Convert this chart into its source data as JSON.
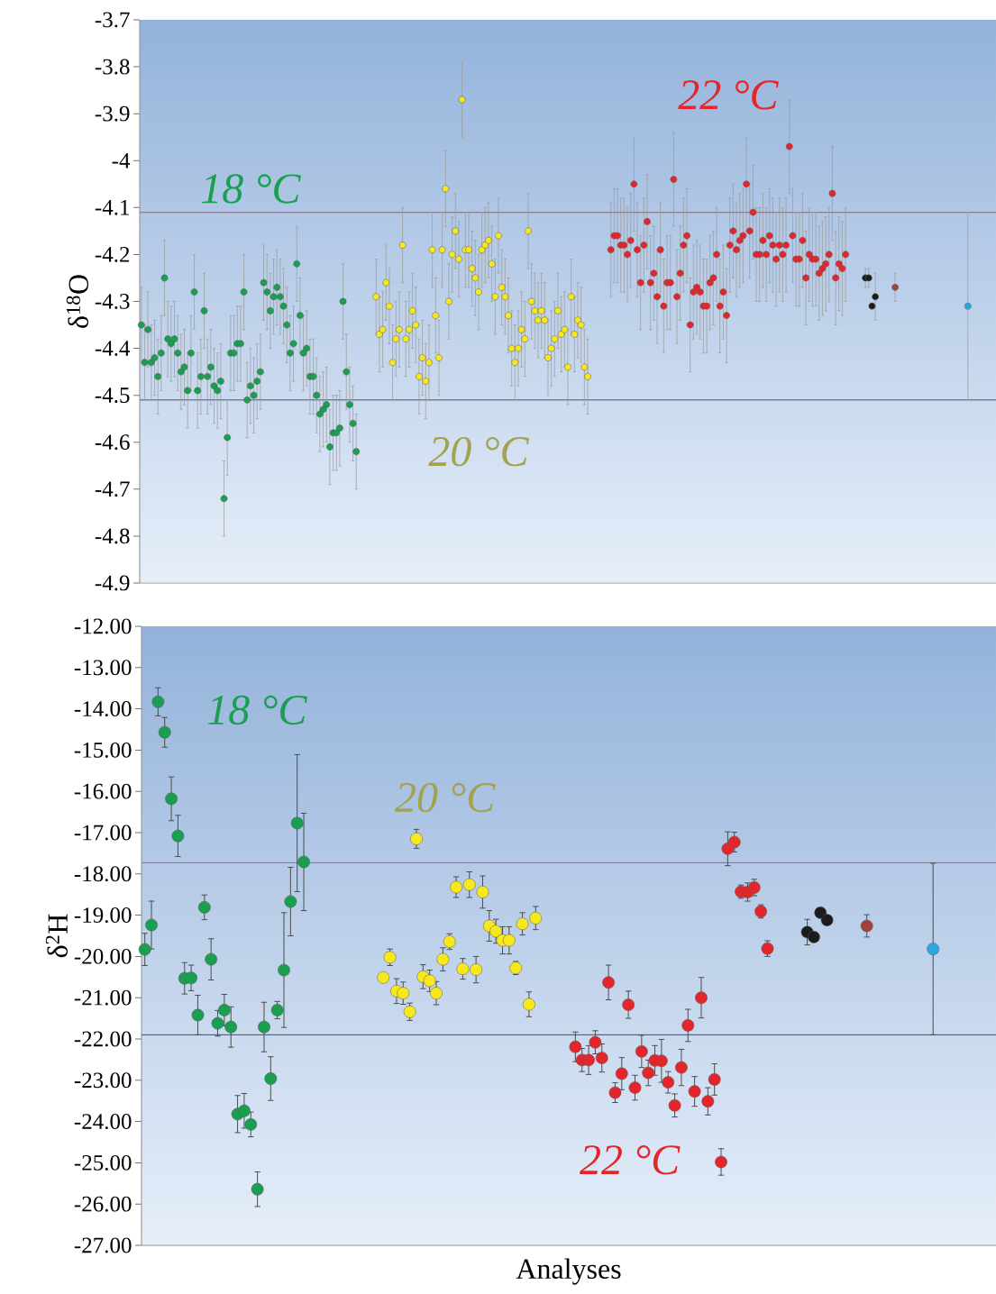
{
  "chart_data": [
    {
      "type": "scatter",
      "ylabel": "δ$^{18}$O",
      "tick_labels": "y",
      "ylim": [
        -4.9,
        -3.7
      ],
      "yticks": [
        -3.7,
        -3.8,
        -3.9,
        -4,
        -4.1,
        -4.2,
        -4.3,
        -4.4,
        -4.5,
        -4.6,
        -4.7,
        -4.8,
        -4.9
      ],
      "annotations": [
        "18 °C",
        "20 °C",
        "22 °C"
      ],
      "ref_lines": [
        {
          "axis": "y",
          "value": -4.11,
          "color": "#e05a5a"
        },
        {
          "axis": "y",
          "value": -4.51,
          "color": "#56627e"
        }
      ],
      "categories": [
        null,
        null,
        null,
        null,
        null,
        null,
        null,
        null,
        null,
        null,
        null,
        null,
        null,
        null,
        null,
        null,
        null,
        null,
        null,
        null,
        null,
        null,
        null,
        null,
        null,
        null,
        null,
        null,
        null,
        null,
        null,
        null,
        null,
        null,
        null,
        null,
        null,
        null,
        null,
        null,
        null,
        null,
        null,
        null,
        null,
        null,
        null,
        null,
        null,
        null,
        null,
        null,
        null,
        null,
        null,
        null,
        null,
        null,
        null,
        null,
        null,
        null,
        null,
        null,
        null,
        null,
        null,
        null,
        null,
        null,
        null,
        null,
        null,
        null,
        null,
        null,
        null,
        null,
        null,
        null,
        null,
        null,
        null,
        null,
        null,
        null,
        null,
        null,
        null,
        null,
        null,
        null,
        null,
        null,
        null,
        null,
        null,
        null,
        null,
        null,
        null,
        null,
        null,
        null,
        null,
        null,
        null,
        null,
        null,
        null,
        null,
        null,
        null,
        null,
        null,
        null,
        null,
        null,
        null,
        null,
        null,
        null,
        null,
        null,
        null,
        null,
        null,
        null,
        null,
        null,
        null,
        null,
        null,
        null,
        null,
        null,
        null,
        null,
        null,
        null,
        null,
        null,
        null,
        null,
        null,
        null,
        null,
        null,
        null,
        null,
        null,
        null,
        null,
        null,
        null,
        null,
        null,
        null,
        null,
        null,
        null,
        null,
        null,
        null,
        null,
        null,
        null,
        null,
        null,
        null,
        null,
        null,
        null,
        null,
        null,
        null,
        null,
        null,
        null,
        null,
        null,
        null,
        null,
        null,
        null,
        null,
        null,
        null,
        null,
        null,
        null,
        null,
        null,
        null,
        null,
        null,
        null,
        null,
        null,
        null,
        null,
        null,
        null,
        null,
        null,
        null,
        null,
        null,
        null,
        null,
        null,
        null,
        null,
        null,
        null,
        null,
        null,
        null,
        null,
        null,
        null,
        null,
        null,
        null,
        null,
        null,
        null,
        null,
        null,
        null,
        null,
        null,
        null,
        null,
        null,
        null,
        null,
        null,
        null,
        null,
        null,
        null,
        null,
        null,
        null,
        null,
        null,
        null,
        null,
        null,
        null,
        null,
        null,
        null,
        null,
        null,
        null,
        null,
        null
      ],
      "values": [
        -4.35,
        -4.43,
        -4.36,
        -4.43,
        -4.42,
        -4.46,
        -4.41,
        -4.25,
        -4.38,
        -4.39,
        -4.38,
        -4.41,
        -4.45,
        -4.44,
        -4.49,
        -4.41,
        -4.28,
        -4.49,
        -4.46,
        -4.32,
        -4.46,
        -4.44,
        -4.48,
        -4.49,
        -4.47,
        -4.72,
        -4.59,
        -4.41,
        -4.41,
        -4.39,
        -4.39,
        -4.28,
        -4.51,
        -4.48,
        -4.5,
        -4.47,
        -4.45,
        -4.26,
        -4.28,
        -4.32,
        -4.29,
        -4.27,
        -4.29,
        -4.31,
        -4.35,
        -4.41,
        -4.39,
        -4.22,
        -4.33,
        -4.41,
        -4.4,
        -4.46,
        -4.46,
        -4.5,
        -4.54,
        -4.53,
        -4.52,
        -4.61,
        -4.58,
        -4.58,
        -4.57,
        -4.3,
        -4.45,
        -4.52,
        -4.56,
        -4.62,
        null,
        null,
        null,
        null,
        null,
        -4.29,
        -4.37,
        -4.36,
        -4.26,
        -4.31,
        -4.43,
        -4.38,
        -4.36,
        -4.18,
        -4.38,
        -4.36,
        -4.32,
        -4.35,
        -4.46,
        -4.42,
        -4.47,
        -4.43,
        -4.19,
        -4.33,
        -4.42,
        -4.19,
        -4.06,
        -4.3,
        -4.2,
        -4.15,
        -4.21,
        -3.87,
        -4.19,
        -4.19,
        -4.23,
        -4.25,
        -4.28,
        -4.19,
        -4.18,
        -4.17,
        -4.22,
        -4.29,
        -4.16,
        -4.27,
        -4.29,
        -4.33,
        -4.4,
        -4.43,
        -4.4,
        -4.36,
        -4.38,
        -4.15,
        -4.3,
        -4.32,
        -4.34,
        -4.32,
        -4.34,
        -4.42,
        -4.4,
        -4.38,
        -4.32,
        -4.37,
        -4.36,
        -4.44,
        -4.29,
        -4.37,
        -4.34,
        -4.35,
        -4.44,
        -4.46,
        null,
        null,
        null,
        null,
        null,
        null,
        -4.19,
        -4.16,
        -4.16,
        -4.18,
        -4.18,
        -4.2,
        -4.17,
        -4.05,
        -4.19,
        -4.26,
        -4.18,
        -4.13,
        -4.26,
        -4.24,
        -4.29,
        -4.19,
        -4.31,
        -4.26,
        -4.26,
        -4.04,
        -4.29,
        -4.24,
        -4.18,
        -4.16,
        -4.35,
        -4.28,
        -4.27,
        -4.28,
        -4.31,
        -4.31,
        -4.26,
        -4.25,
        -4.2,
        -4.31,
        -4.28,
        -4.33,
        -4.18,
        -4.15,
        -4.19,
        -4.17,
        -4.16,
        -4.05,
        -4.15,
        -4.11,
        -4.2,
        -4.2,
        -4.17,
        -4.2,
        -4.16,
        -4.18,
        -4.21,
        -4.18,
        -4.2,
        -4.18,
        -3.97,
        -4.16,
        -4.21,
        -4.21,
        -4.17,
        -4.25,
        -4.2,
        -4.21,
        -4.21,
        -4.24,
        -4.23,
        -4.22,
        -4.2,
        -4.07,
        -4.25,
        -4.22,
        -4.23,
        -4.2,
        null,
        null,
        null,
        null,
        null,
        -4.25,
        -4.25,
        -4.31,
        -4.29,
        null,
        null,
        null,
        null,
        null,
        -4.27,
        null,
        null,
        null,
        null,
        null,
        null,
        null,
        null,
        null,
        null,
        null,
        null,
        null,
        null,
        null,
        null,
        null,
        null,
        null,
        null,
        null,
        -4.31,
        null,
        null,
        null,
        null,
        null,
        null,
        null,
        null
      ],
      "errors": [
        0.08,
        0.08,
        0.08,
        0.08,
        0.08,
        0.08,
        0.08,
        0.08,
        0.08,
        0.08,
        0.08,
        0.08,
        0.08,
        0.08,
        0.08,
        0.08,
        0.08,
        0.08,
        0.08,
        0.08,
        0.08,
        0.08,
        0.08,
        0.08,
        0.08,
        0.08,
        0.08,
        0.08,
        0.08,
        0.08,
        0.08,
        0.08,
        0.08,
        0.08,
        0.08,
        0.08,
        0.08,
        0.08,
        0.08,
        0.08,
        0.08,
        0.08,
        0.08,
        0.08,
        0.08,
        0.08,
        0.08,
        0.08,
        0.08,
        0.08,
        0.08,
        0.08,
        0.08,
        0.08,
        0.08,
        0.08,
        0.08,
        0.08,
        0.08,
        0.08,
        0.08,
        0.08,
        0.08,
        0.08,
        0.08,
        0.08,
        null,
        null,
        null,
        null,
        null,
        0.08,
        0.08,
        0.08,
        0.08,
        0.08,
        0.08,
        0.08,
        0.08,
        0.08,
        0.08,
        0.08,
        0.08,
        0.08,
        0.08,
        0.08,
        0.08,
        0.08,
        0.08,
        0.08,
        0.08,
        0.08,
        0.08,
        0.08,
        0.08,
        0.08,
        0.08,
        0.08,
        0.08,
        0.08,
        0.08,
        0.08,
        0.08,
        0.08,
        0.08,
        0.08,
        0.08,
        0.08,
        0.08,
        0.08,
        0.08,
        0.08,
        0.08,
        0.08,
        0.08,
        0.08,
        0.08,
        0.08,
        0.08,
        0.08,
        0.08,
        0.08,
        0.08,
        0.08,
        0.08,
        0.08,
        0.08,
        0.08,
        0.08,
        0.08,
        0.08,
        0.08,
        0.08,
        0.08,
        0.08,
        0.08,
        null,
        null,
        null,
        null,
        null,
        null,
        0.1,
        0.1,
        0.1,
        0.1,
        0.1,
        0.1,
        0.1,
        0.1,
        0.1,
        0.1,
        0.1,
        0.1,
        0.1,
        0.1,
        0.1,
        0.1,
        0.1,
        0.1,
        0.1,
        0.1,
        0.1,
        0.1,
        0.1,
        0.1,
        0.1,
        0.1,
        0.1,
        0.1,
        0.1,
        0.1,
        0.1,
        0.1,
        0.1,
        0.1,
        0.1,
        0.1,
        0.1,
        0.1,
        0.1,
        0.1,
        0.1,
        0.1,
        0.1,
        0.1,
        0.1,
        0.1,
        0.1,
        0.1,
        0.1,
        0.1,
        0.1,
        0.1,
        0.1,
        0.1,
        0.1,
        0.1,
        0.1,
        0.1,
        0.1,
        0.1,
        0.1,
        0.1,
        0.1,
        0.1,
        0.1,
        0.1,
        0.1,
        0.1,
        0.1,
        0.1,
        0.1,
        0.1,
        null,
        null,
        null,
        null,
        null,
        0.02,
        0.02,
        null,
        0.05,
        null,
        null,
        null,
        null,
        null,
        0.03,
        null,
        null,
        null,
        null,
        null,
        null,
        null,
        null,
        null,
        null,
        null,
        null,
        null,
        null,
        null,
        null,
        null,
        null,
        null,
        null,
        null,
        0.2,
        null,
        null,
        null,
        null,
        null,
        null,
        null,
        null
      ],
      "colors": [
        "#1a9e50",
        "#1a9e50",
        "#1a9e50",
        "#1a9e50",
        "#1a9e50",
        "#1a9e50",
        "#1a9e50",
        "#1a9e50",
        "#1a9e50",
        "#1a9e50",
        "#1a9e50",
        "#1a9e50",
        "#1a9e50",
        "#1a9e50",
        "#1a9e50",
        "#1a9e50",
        "#1a9e50",
        "#1a9e50",
        "#1a9e50",
        "#1a9e50",
        "#1a9e50",
        "#1a9e50",
        "#1a9e50",
        "#1a9e50",
        "#1a9e50",
        "#1a9e50",
        "#1a9e50",
        "#1a9e50",
        "#1a9e50",
        "#1a9e50",
        "#1a9e50",
        "#1a9e50",
        "#1a9e50",
        "#1a9e50",
        "#1a9e50",
        "#1a9e50",
        "#1a9e50",
        "#1a9e50",
        "#1a9e50",
        "#1a9e50",
        "#1a9e50",
        "#1a9e50",
        "#1a9e50",
        "#1a9e50",
        "#1a9e50",
        "#1a9e50",
        "#1a9e50",
        "#1a9e50",
        "#1a9e50",
        "#1a9e50",
        "#1a9e50",
        "#1a9e50",
        "#1a9e50",
        "#1a9e50",
        "#1a9e50",
        "#1a9e50",
        "#1a9e50",
        "#1a9e50",
        "#1a9e50",
        "#1a9e50",
        "#1a9e50",
        "#1a9e50",
        "#1a9e50",
        "#1a9e50",
        "#1a9e50",
        "#1a9e50",
        null,
        null,
        null,
        null,
        null,
        "#f6e81c",
        "#f6e81c",
        "#f6e81c",
        "#f6e81c",
        "#f6e81c",
        "#f6e81c",
        "#f6e81c",
        "#f6e81c",
        "#f6e81c",
        "#f6e81c",
        "#f6e81c",
        "#f6e81c",
        "#f6e81c",
        "#f6e81c",
        "#f6e81c",
        "#f6e81c",
        "#f6e81c",
        "#f6e81c",
        "#f6e81c",
        "#f6e81c",
        "#f6e81c",
        "#f6e81c",
        "#f6e81c",
        "#f6e81c",
        "#f6e81c",
        "#f6e81c",
        "#f6e81c",
        "#f6e81c",
        "#f6e81c",
        "#f6e81c",
        "#f6e81c",
        "#f6e81c",
        "#f6e81c",
        "#f6e81c",
        "#f6e81c",
        "#f6e81c",
        "#f6e81c",
        "#f6e81c",
        "#f6e81c",
        "#f6e81c",
        "#f6e81c",
        "#f6e81c",
        "#f6e81c",
        "#f6e81c",
        "#f6e81c",
        "#f6e81c",
        "#f6e81c",
        "#f6e81c",
        "#f6e81c",
        "#f6e81c",
        "#f6e81c",
        "#f6e81c",
        "#f6e81c",
        "#f6e81c",
        "#f6e81c",
        "#f6e81c",
        "#f6e81c",
        "#f6e81c",
        "#f6e81c",
        "#f6e81c",
        "#f6e81c",
        "#f6e81c",
        "#f6e81c",
        "#f6e81c",
        "#f6e81c",
        null,
        null,
        null,
        null,
        null,
        null,
        "#e3262b",
        "#e3262b",
        "#e3262b",
        "#e3262b",
        "#e3262b",
        "#e3262b",
        "#e3262b",
        "#e3262b",
        "#e3262b",
        "#e3262b",
        "#e3262b",
        "#e3262b",
        "#e3262b",
        "#e3262b",
        "#e3262b",
        "#e3262b",
        "#e3262b",
        "#e3262b",
        "#e3262b",
        "#e3262b",
        "#e3262b",
        "#e3262b",
        "#e3262b",
        "#e3262b",
        "#e3262b",
        "#e3262b",
        "#e3262b",
        "#e3262b",
        "#e3262b",
        "#e3262b",
        "#e3262b",
        "#e3262b",
        "#e3262b",
        "#e3262b",
        "#e3262b",
        "#e3262b",
        "#e3262b",
        "#e3262b",
        "#e3262b",
        "#e3262b",
        "#e3262b",
        "#e3262b",
        "#e3262b",
        "#e3262b",
        "#e3262b",
        "#e3262b",
        "#e3262b",
        "#e3262b",
        "#e3262b",
        "#e3262b",
        "#e3262b",
        "#e3262b",
        "#e3262b",
        "#e3262b",
        "#e3262b",
        "#e3262b",
        "#e3262b",
        "#e3262b",
        "#e3262b",
        "#e3262b",
        "#e3262b",
        "#e3262b",
        "#e3262b",
        "#e3262b",
        "#e3262b",
        "#e3262b",
        "#e3262b",
        "#e3262b",
        "#e3262b",
        "#e3262b",
        "#e3262b",
        "#e3262b",
        null,
        null,
        null,
        null,
        null,
        "#1c1c1c",
        "#1c1c1c",
        "#1c1c1c",
        "#1c1c1c",
        null,
        null,
        null,
        null,
        null,
        "#a4413b",
        null,
        null,
        null,
        null,
        null,
        null,
        null,
        null,
        null,
        null,
        null,
        null,
        null,
        null,
        null,
        null,
        null,
        null,
        null,
        null,
        null,
        "#2aa9e0",
        null,
        null,
        null,
        null,
        null,
        null,
        null,
        null
      ]
    },
    {
      "type": "scatter",
      "ylabel": "δ$^{2}$H",
      "xlabel": "Analyses",
      "tick_labels": "y",
      "ylim": [
        -27,
        -12
      ],
      "yticks": [
        {
          "value": -12,
          "label": "-12.00"
        },
        {
          "value": -13,
          "label": "-13.00"
        },
        {
          "value": -14,
          "label": "-14.00"
        },
        {
          "value": -15,
          "label": "-15.00"
        },
        {
          "value": -16,
          "label": "-16.00"
        },
        {
          "value": -17,
          "label": "-17.00"
        },
        {
          "value": -18,
          "label": "-18.00"
        },
        {
          "value": -19,
          "label": "-19.00"
        },
        {
          "value": -20,
          "label": "-20.00"
        },
        {
          "value": -21,
          "label": "-21.00"
        },
        {
          "value": -22,
          "label": "-22.00"
        },
        {
          "value": -23,
          "label": "-23.00"
        },
        {
          "value": -24,
          "label": "-24.00"
        },
        {
          "value": -25,
          "label": "-25.00"
        },
        {
          "value": -26,
          "label": "-26.00"
        },
        {
          "value": -27,
          "label": "-27.00"
        }
      ],
      "annotations": [
        "18 °C",
        "20 °C",
        "22 °C"
      ],
      "ref_lines": [
        {
          "axis": "y",
          "value": -17.73,
          "color": "#e05a5a"
        },
        {
          "axis": "y",
          "value": -21.9,
          "color": "#56627e"
        }
      ],
      "categories": [
        null,
        null,
        null,
        null,
        null,
        null,
        null,
        null,
        null,
        null,
        null,
        null,
        null,
        null,
        null,
        null,
        null,
        null,
        null,
        null,
        null,
        null,
        null,
        null,
        null,
        null,
        null,
        null,
        null,
        null,
        null,
        null,
        null,
        null,
        null,
        null,
        null,
        null,
        null,
        null,
        null,
        null,
        null,
        null,
        null,
        null,
        null,
        null,
        null,
        null,
        null,
        null,
        null,
        null,
        null,
        null,
        null,
        null,
        null,
        null,
        null,
        null,
        null,
        null,
        null,
        null,
        null,
        null,
        null,
        null,
        null,
        null,
        null,
        null,
        null,
        null,
        null,
        null,
        null,
        null,
        null,
        null,
        null,
        null,
        null,
        null,
        null,
        null,
        null,
        null,
        null,
        null,
        null,
        null,
        null,
        null,
        null,
        null,
        null,
        null,
        null,
        null,
        null,
        null,
        null,
        null,
        null,
        null,
        null,
        null,
        null,
        null,
        null,
        null,
        null,
        null,
        null,
        null,
        null,
        null,
        null,
        null,
        null,
        null,
        null,
        null,
        null,
        null,
        null
      ],
      "values": [
        -19.83,
        -19.24,
        -13.83,
        -14.57,
        -16.18,
        -17.08,
        -20.53,
        -20.52,
        -21.42,
        -18.81,
        -20.07,
        -21.62,
        -21.3,
        -21.71,
        -23.82,
        -23.74,
        -24.07,
        -25.64,
        -21.71,
        -22.96,
        -21.3,
        -20.33,
        -18.67,
        -16.77,
        -17.71,
        null,
        null,
        null,
        null,
        null,
        null,
        null,
        null,
        null,
        null,
        null,
        -20.51,
        -20.02,
        -20.84,
        -20.89,
        -21.34,
        -17.15,
        -20.49,
        -20.59,
        -20.89,
        -20.07,
        -19.64,
        -18.32,
        -20.3,
        -18.26,
        -20.32,
        -18.44,
        -19.26,
        -19.39,
        -19.61,
        -19.61,
        -20.28,
        -19.21,
        -21.16,
        -19.07,
        null,
        null,
        null,
        null,
        null,
        -22.19,
        -22.51,
        -22.51,
        -22.08,
        -22.46,
        -20.63,
        -23.3,
        -22.84,
        -21.17,
        -23.18,
        -22.3,
        -22.82,
        -22.52,
        -22.53,
        -23.05,
        -23.61,
        -22.69,
        -21.67,
        -23.27,
        -21.0,
        -23.51,
        -22.98,
        -24.98,
        -17.39,
        -17.23,
        -18.43,
        -18.44,
        -18.33,
        -18.91,
        -19.81,
        null,
        null,
        null,
        null,
        null,
        -19.41,
        -19.53,
        -18.94,
        -19.12,
        null,
        null,
        null,
        null,
        null,
        -19.26,
        null,
        null,
        null,
        null,
        null,
        null,
        null,
        null,
        null,
        -19.82,
        null,
        null,
        null,
        null,
        null,
        null,
        null,
        null,
        null
      ],
      "errors": [
        0.39,
        0.58,
        0.34,
        0.36,
        0.53,
        0.5,
        0.38,
        0.31,
        0.48,
        0.3,
        0.5,
        0.31,
        0.38,
        0.49,
        0.45,
        0.42,
        0.3,
        0.42,
        0.6,
        0.53,
        0.21,
        1.39,
        0.83,
        1.66,
        1.18,
        null,
        null,
        null,
        null,
        null,
        null,
        null,
        null,
        null,
        null,
        null,
        null,
        0.2,
        0.3,
        0.27,
        0.21,
        0.23,
        0.29,
        0.26,
        0.28,
        0.28,
        0.19,
        0.25,
        0.25,
        0.31,
        0.32,
        0.39,
        0.37,
        0.29,
        0.33,
        0.33,
        0.16,
        0.27,
        0.3,
        0.28,
        null,
        null,
        null,
        null,
        null,
        0.36,
        0.28,
        0.35,
        0.28,
        0.34,
        0.42,
        0.24,
        0.39,
        0.33,
        0.3,
        0.39,
        0.31,
        0.36,
        0.52,
        0.26,
        0.28,
        0.44,
        0.39,
        0.36,
        0.49,
        0.33,
        0.38,
        0.32,
        0.41,
        0.24,
        0.16,
        0.22,
        0.2,
        0.16,
        0.19,
        null,
        null,
        null,
        null,
        null,
        0.31,
        null,
        null,
        null,
        null,
        null,
        null,
        null,
        null,
        0.27,
        null,
        null,
        null,
        null,
        null,
        null,
        null,
        null,
        null,
        2.08,
        null,
        null,
        null,
        null,
        null,
        null,
        null,
        null,
        null
      ],
      "colors": [
        "#1a9e50",
        "#1a9e50",
        "#1a9e50",
        "#1a9e50",
        "#1a9e50",
        "#1a9e50",
        "#1a9e50",
        "#1a9e50",
        "#1a9e50",
        "#1a9e50",
        "#1a9e50",
        "#1a9e50",
        "#1a9e50",
        "#1a9e50",
        "#1a9e50",
        "#1a9e50",
        "#1a9e50",
        "#1a9e50",
        "#1a9e50",
        "#1a9e50",
        "#1a9e50",
        "#1a9e50",
        "#1a9e50",
        "#1a9e50",
        "#1a9e50",
        null,
        null,
        null,
        null,
        null,
        null,
        null,
        null,
        null,
        null,
        null,
        "#f6e81c",
        "#f6e81c",
        "#f6e81c",
        "#f6e81c",
        "#f6e81c",
        "#f6e81c",
        "#f6e81c",
        "#f6e81c",
        "#f6e81c",
        "#f6e81c",
        "#f6e81c",
        "#f6e81c",
        "#f6e81c",
        "#f6e81c",
        "#f6e81c",
        "#f6e81c",
        "#f6e81c",
        "#f6e81c",
        "#f6e81c",
        "#f6e81c",
        "#f6e81c",
        "#f6e81c",
        "#f6e81c",
        "#f6e81c",
        null,
        null,
        null,
        null,
        null,
        "#e3262b",
        "#e3262b",
        "#e3262b",
        "#e3262b",
        "#e3262b",
        "#e3262b",
        "#e3262b",
        "#e3262b",
        "#e3262b",
        "#e3262b",
        "#e3262b",
        "#e3262b",
        "#e3262b",
        "#e3262b",
        "#e3262b",
        "#e3262b",
        "#e3262b",
        "#e3262b",
        "#e3262b",
        "#e3262b",
        "#e3262b",
        "#e3262b",
        "#e3262b",
        "#e3262b",
        "#e3262b",
        "#e3262b",
        "#e3262b",
        "#e3262b",
        "#e3262b",
        "#e3262b",
        null,
        null,
        null,
        null,
        null,
        "#1c1c1c",
        "#1c1c1c",
        "#1c1c1c",
        "#1c1c1c",
        null,
        null,
        null,
        null,
        null,
        "#a4413b",
        null,
        null,
        null,
        null,
        null,
        null,
        null,
        null,
        null,
        "#2aa9e0",
        null,
        null,
        null,
        null,
        null,
        null,
        null,
        null,
        null
      ]
    }
  ]
}
